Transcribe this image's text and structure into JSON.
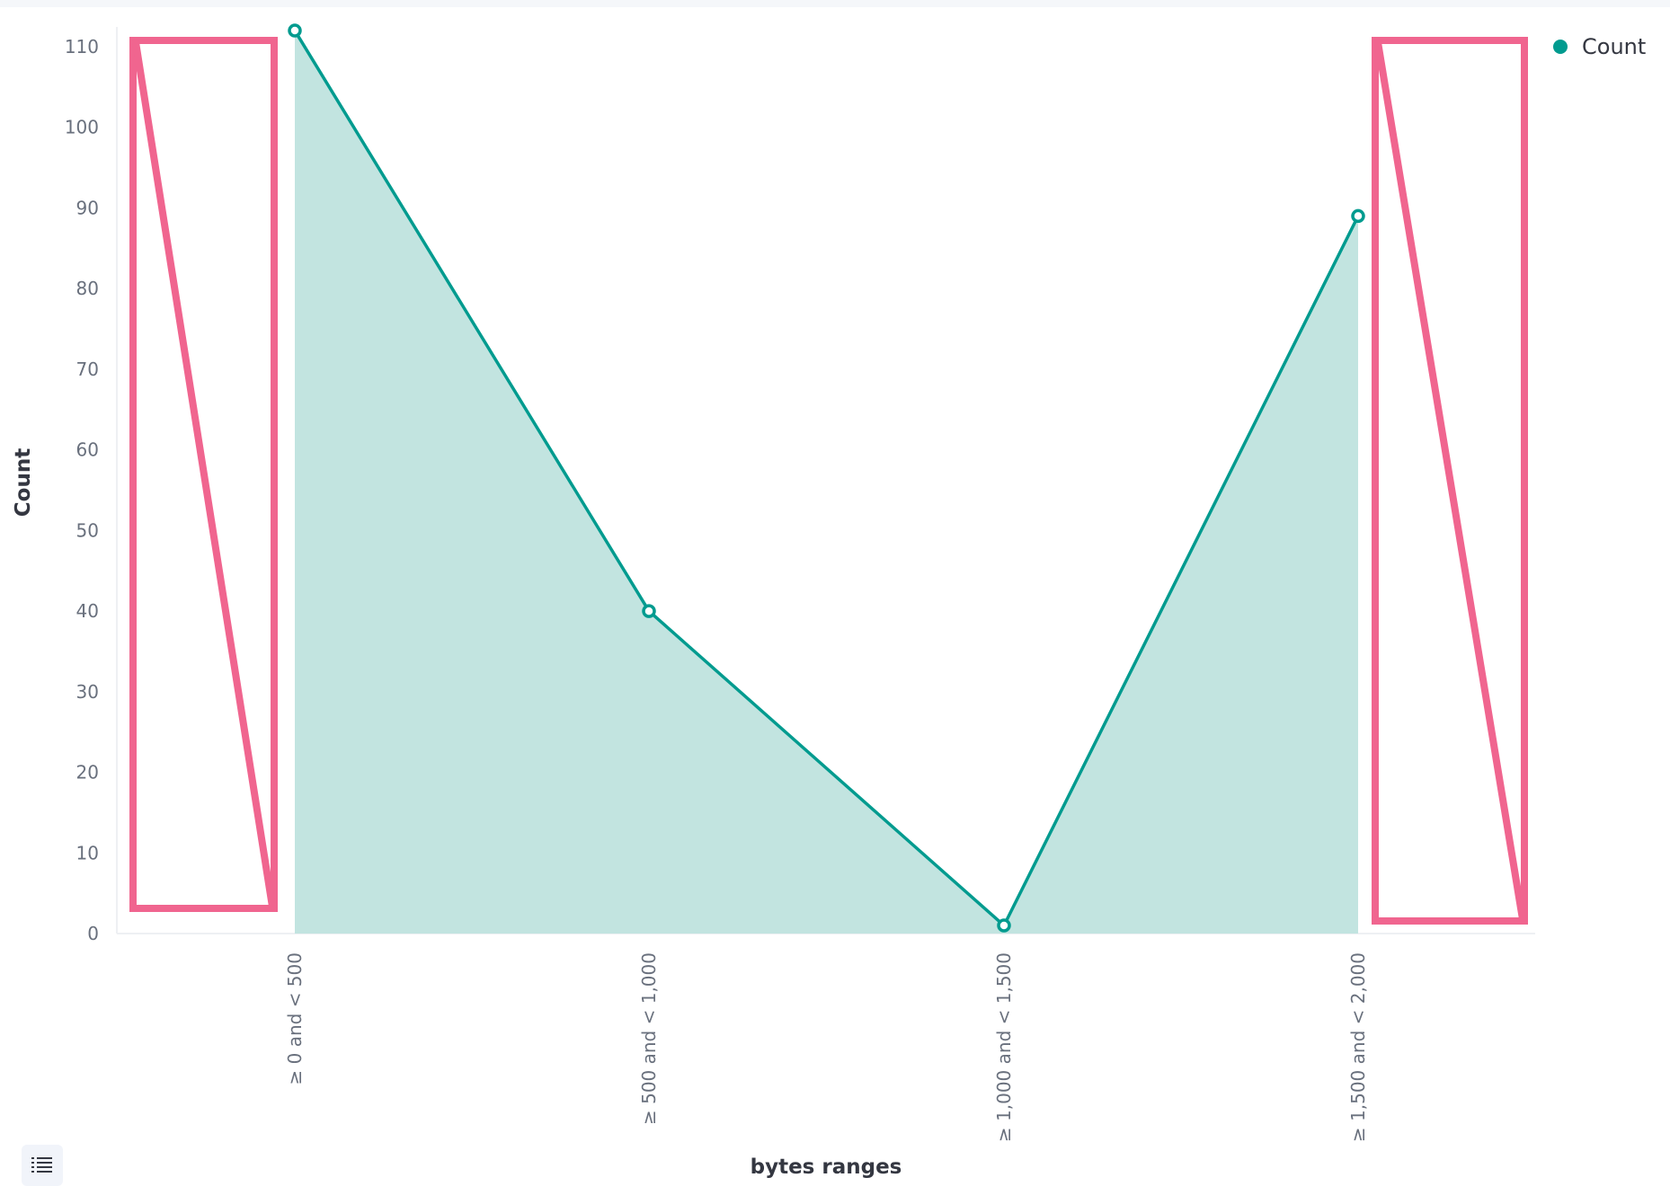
{
  "chart_data": {
    "type": "area",
    "title": "",
    "xlabel": "bytes ranges",
    "ylabel": "Count",
    "categories": [
      "≥ 0 and < 500",
      "≥ 500 and < 1,000",
      "≥ 1,000 and < 1,500",
      "≥ 1,500 and < 2,000"
    ],
    "series": [
      {
        "name": "Count",
        "values": [
          112,
          40,
          1,
          89
        ],
        "color": "#009b8f",
        "fill": "#c2e4e0"
      }
    ],
    "ylim": [
      0,
      110
    ],
    "yticks": [
      0,
      10,
      20,
      30,
      40,
      50,
      60,
      70,
      80,
      90,
      100,
      110
    ],
    "grid": false,
    "legend": {
      "position": "top-right",
      "entries": [
        "Count"
      ]
    },
    "annotations": [
      {
        "type": "highlight-box",
        "color": "#f0658f",
        "location": "left of first category"
      },
      {
        "type": "highlight-box",
        "color": "#f0658f",
        "location": "right of last category"
      }
    ]
  },
  "legend_toggle_icon": "list-icon"
}
